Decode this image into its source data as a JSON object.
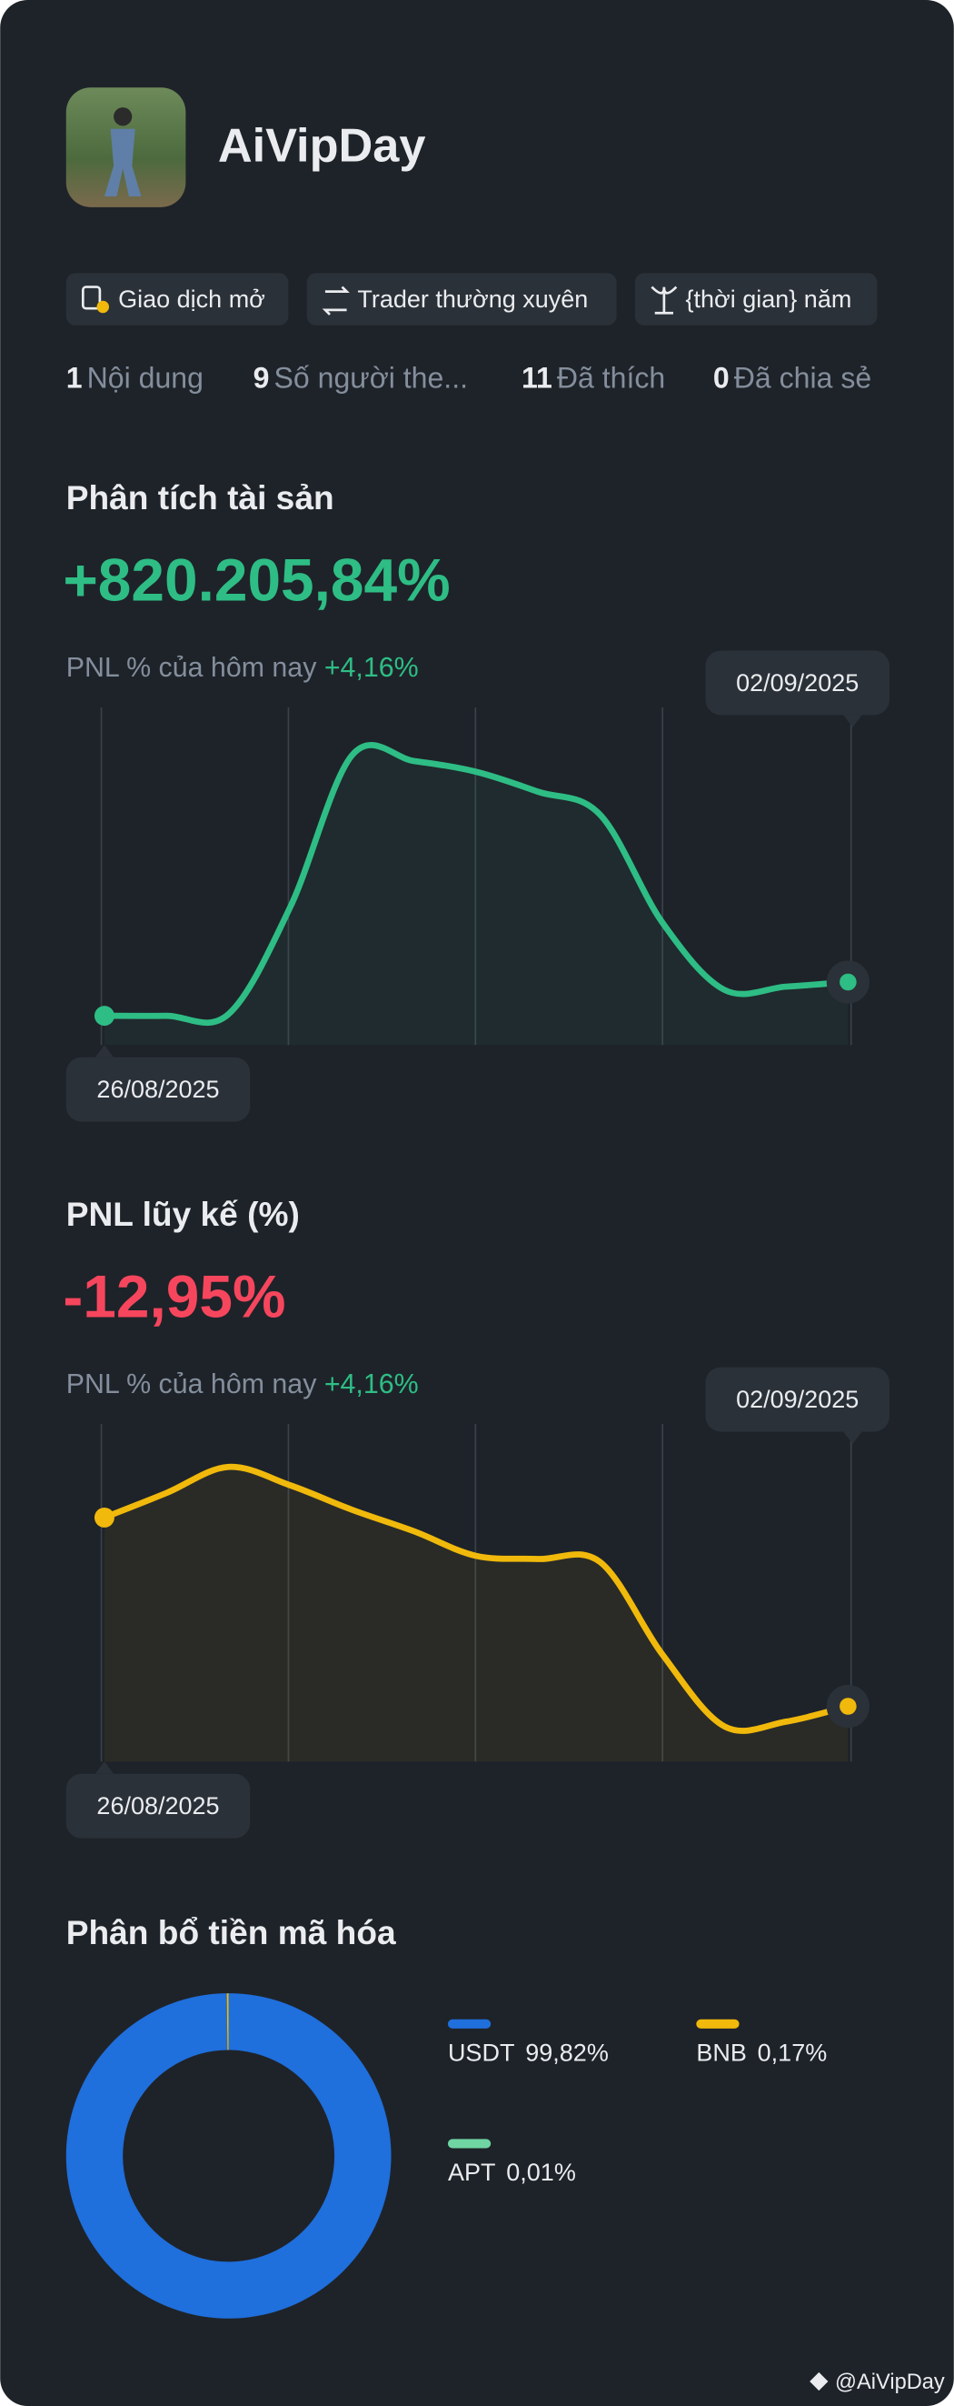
{
  "profile": {
    "name": "AiVipDay"
  },
  "tags": [
    "Giao dịch mở",
    "Trader thường xuyên",
    "{thời gian} năm"
  ],
  "stats": [
    {
      "value": 1,
      "label": "Nội dung"
    },
    {
      "value": 9,
      "label": "Số người the..."
    },
    {
      "value": 11,
      "label": "Đã thích"
    },
    {
      "value": 0,
      "label": "Đã chia sẻ"
    }
  ],
  "footer": "@AiVipDay",
  "chart_data": [
    {
      "type": "line",
      "title": "Phân tích tài sản",
      "headline": "+820.205,84%",
      "subtitle": "PNL % của hôm nay",
      "subtitle_value": "+4,16%",
      "color": "#2ebd85",
      "categories": [
        "26/08/2025",
        null,
        null,
        null,
        null,
        null,
        null,
        null,
        null,
        null,
        null,
        null,
        "02/09/2025"
      ],
      "values": [
        19,
        19,
        20,
        90,
        189,
        185,
        178,
        165,
        150,
        80,
        36,
        38,
        41
      ]
    },
    {
      "type": "line",
      "title": "PNL lũy kế (%)",
      "headline": "-12,95%",
      "subtitle": "PNL % của hôm nay",
      "subtitle_value": "+4,16%",
      "color": "#f0b90b",
      "categories": [
        "26/08/2025",
        null,
        null,
        null,
        null,
        null,
        null,
        null,
        null,
        null,
        null,
        null,
        "02/09/2025"
      ],
      "values": [
        159,
        175,
        192,
        180,
        164,
        150,
        134,
        132,
        130,
        70,
        23,
        26,
        36
      ]
    },
    {
      "type": "pie",
      "title": "Phân bổ tiền mã hóa",
      "categories": [
        "USDT",
        "BNB",
        "APT"
      ],
      "values": [
        99.82,
        0.17,
        0.01
      ],
      "value_labels": [
        "99,82%",
        "0,17%",
        "0,01%"
      ],
      "colors": [
        "#1f6fdc",
        "#f0b90b",
        "#6fd5a3"
      ]
    }
  ]
}
